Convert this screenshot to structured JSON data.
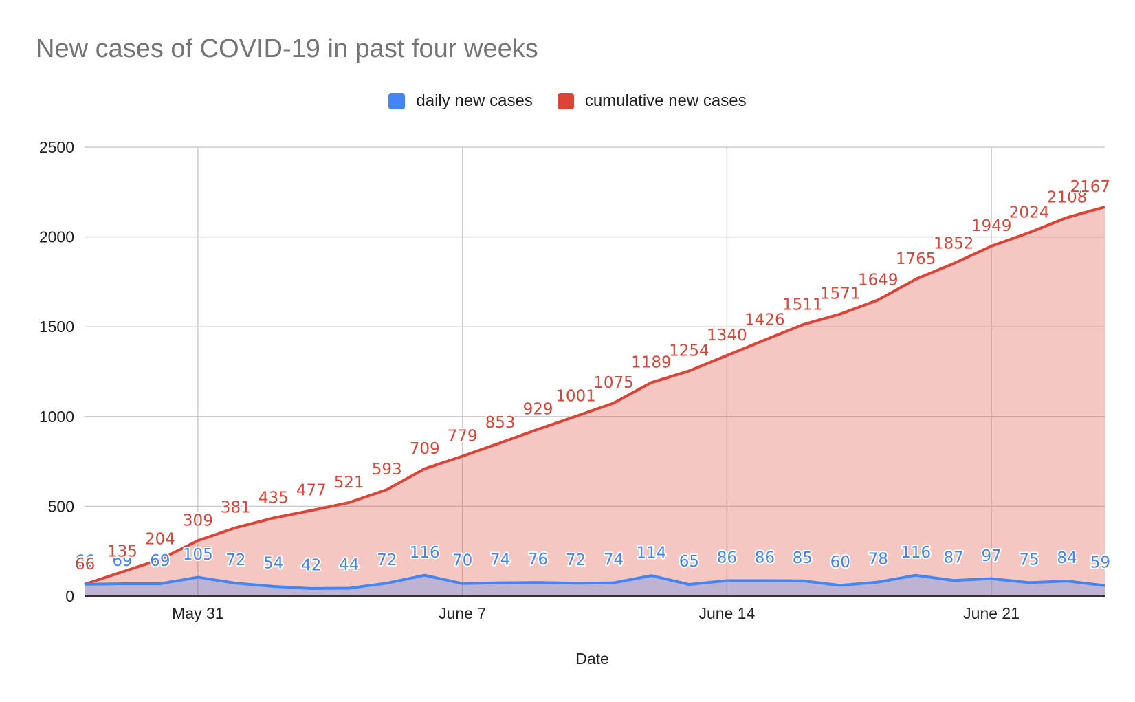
{
  "chart_data": {
    "type": "area",
    "title": "New cases of COVID-19 in past four weeks",
    "xlabel": "Date",
    "ylabel": "",
    "ylim": [
      0,
      2500
    ],
    "y_ticks": [
      0,
      500,
      1000,
      1500,
      2000,
      2500
    ],
    "x_tick_labels": [
      "May 31",
      "June 7",
      "June 14",
      "June 21"
    ],
    "x_tick_indices": [
      3,
      10,
      17,
      24
    ],
    "grid": true,
    "legend_position": "top",
    "series": [
      {
        "name": "daily new cases",
        "color": "#4285f4",
        "values": [
          66,
          69,
          69,
          105,
          72,
          54,
          42,
          44,
          72,
          116,
          70,
          74,
          76,
          72,
          74,
          114,
          65,
          86,
          86,
          85,
          60,
          78,
          116,
          87,
          97,
          75,
          84,
          59
        ]
      },
      {
        "name": "cumulative new cases",
        "color": "#db4437",
        "values": [
          66,
          135,
          204,
          309,
          381,
          435,
          477,
          521,
          593,
          709,
          779,
          853,
          929,
          1001,
          1075,
          1189,
          1254,
          1340,
          1426,
          1511,
          1571,
          1649,
          1765,
          1852,
          1949,
          2024,
          2108,
          2167
        ]
      }
    ]
  }
}
